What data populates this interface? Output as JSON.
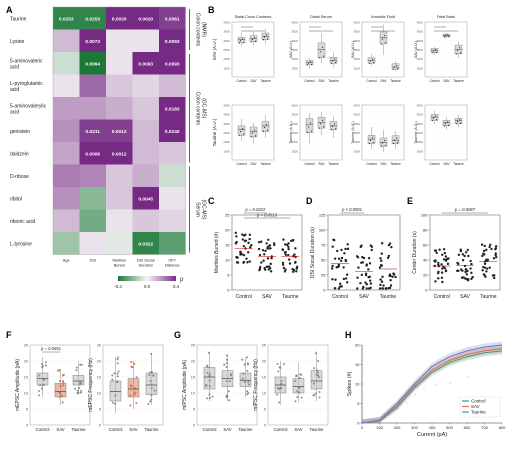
{
  "panel_letters": [
    "A",
    "B",
    "C",
    "D",
    "E",
    "F",
    "G",
    "H"
  ],
  "heatmap": {
    "rows": [
      "Taurine",
      "Lysine",
      "5-aminovaleric acid",
      "L-pyroglutamic acid",
      "5-aminovalerylic acid",
      "genistein",
      "daidzein",
      "D-ribose",
      "ribitol",
      "ribonic acid",
      "L-tyrosine"
    ],
    "cols": [
      "Age",
      "DSI",
      "Marbles Buried",
      "DSI Social Duration",
      "OFT Distance"
    ],
    "cells": [
      [
        "0.0253",
        "0.0253",
        "0.0020",
        "0.0020",
        "0.0061"
      ],
      [
        "",
        "0.0073",
        "",
        "",
        "0.0093"
      ],
      [
        "",
        "0.0064",
        "",
        "0.0093",
        "0.0093"
      ],
      [
        "",
        "",
        "",
        "",
        ""
      ],
      [
        "",
        "",
        "",
        "",
        "0.0183"
      ],
      [
        "",
        "0.0211",
        "0.0012",
        "",
        "0.0240"
      ],
      [
        "",
        "0.0006",
        "0.0012",
        "",
        ""
      ],
      [
        "",
        "",
        "",
        "",
        ""
      ],
      [
        "",
        "",
        "",
        "0.0045",
        ""
      ],
      [
        "",
        "",
        "",
        "",
        ""
      ],
      [
        "",
        "",
        "",
        "0.0322",
        ""
      ]
    ],
    "values": [
      [
        -0.45,
        -0.45,
        0.5,
        0.5,
        0.45
      ],
      [
        0.15,
        0.5,
        0.05,
        0.05,
        0.5
      ],
      [
        -0.1,
        -0.5,
        0.05,
        0.5,
        0.5
      ],
      [
        0.05,
        0.35,
        0.12,
        0.08,
        0.15
      ],
      [
        0.22,
        0.22,
        0.18,
        0.12,
        0.5
      ],
      [
        0.25,
        0.45,
        0.45,
        0.15,
        0.5
      ],
      [
        0.2,
        0.5,
        0.5,
        0.15,
        0.12
      ],
      [
        0.3,
        0.28,
        0.12,
        0.18,
        -0.1
      ],
      [
        0.25,
        -0.25,
        0.12,
        0.5,
        0.05
      ],
      [
        0.15,
        -0.3,
        0.05,
        0.12,
        0.08
      ],
      [
        -0.2,
        0.05,
        -0.05,
        -0.45,
        -0.35
      ]
    ],
    "groups": [
      "Colon contents (NMR)",
      "Colon contents (GC-MS)",
      "Serum (GC-MS)"
    ],
    "legend_title": "ρ",
    "legend_ticks": [
      "-0.4",
      "0.0",
      "0.4"
    ],
    "colors": {
      "neg": "#1b7837",
      "mid": "#f7f7f7",
      "pos": "#762a83"
    }
  },
  "panel_b": {
    "titles": [
      "Distal Colon Contents",
      "Distal Serum",
      "Amniotic Fluid",
      "Fetal Brain"
    ],
    "ylabel_top": "SAV (A.U.)",
    "ylabel_bottom": "Taurine (A.U.)",
    "groups": [
      "Control",
      "SAV",
      "Taurine"
    ]
  },
  "chart_data": [
    {
      "type": "scatter",
      "title": "",
      "ylabel": "Marbles Buried (#)",
      "categories": [
        "Control",
        "SAV",
        "Taurine"
      ],
      "ylim": [
        0,
        25
      ],
      "annotation": "p = 0.0322",
      "annotation2": "p = 0.0513"
    },
    {
      "type": "scatter",
      "title": "",
      "ylabel": "DSI Social Duration (s)",
      "categories": [
        "Control",
        "SAV",
        "Taurine"
      ],
      "ylim": [
        0,
        125
      ],
      "annotation": "p < 0.0001"
    },
    {
      "type": "scatter",
      "title": "",
      "ylabel": "Center Duration (s)",
      "categories": [
        "Control",
        "SAV",
        "Taurine"
      ],
      "ylim": [
        0,
        100
      ],
      "annotation": "p = 0.0087"
    },
    {
      "type": "line",
      "title": "",
      "xlabel": "Current (pA)",
      "ylabel": "Spikes (#)",
      "x": [
        0,
        100,
        200,
        300,
        400,
        500,
        600,
        700,
        800
      ],
      "xlim": [
        0,
        800
      ],
      "ylim": [
        0,
        20
      ],
      "series": [
        {
          "name": "Control",
          "values": [
            0,
            0.5,
            4,
            9,
            13,
            15.5,
            17,
            18,
            18.5
          ]
        },
        {
          "name": "SAV",
          "values": [
            0,
            0.6,
            4.5,
            9.5,
            13.5,
            16,
            17.5,
            18.5,
            19
          ]
        },
        {
          "name": "Taurine",
          "values": [
            0,
            0.7,
            5,
            10,
            14.5,
            17,
            18.5,
            19.5,
            20
          ]
        }
      ]
    }
  ],
  "panel_f": {
    "ylabels": [
      "mEPSC Amplitude (pA)",
      "mEPSC Frequency (Hz)"
    ],
    "groups": [
      "Control",
      "SAV",
      "Taurine"
    ],
    "annotation": "p = 0.0651"
  },
  "panel_g": {
    "ylabels": [
      "mIPSC Amplitude (pA)",
      "mIPSC Frequency (Hz)"
    ],
    "groups": [
      "Control",
      "SAV",
      "Taurine"
    ]
  },
  "legend_h": [
    "Control",
    "SAV",
    "Taurine"
  ],
  "series_colors": {
    "Control": "#2c9c8c",
    "SAV": "#e0734a",
    "Taurine": "#6a7bbf"
  }
}
